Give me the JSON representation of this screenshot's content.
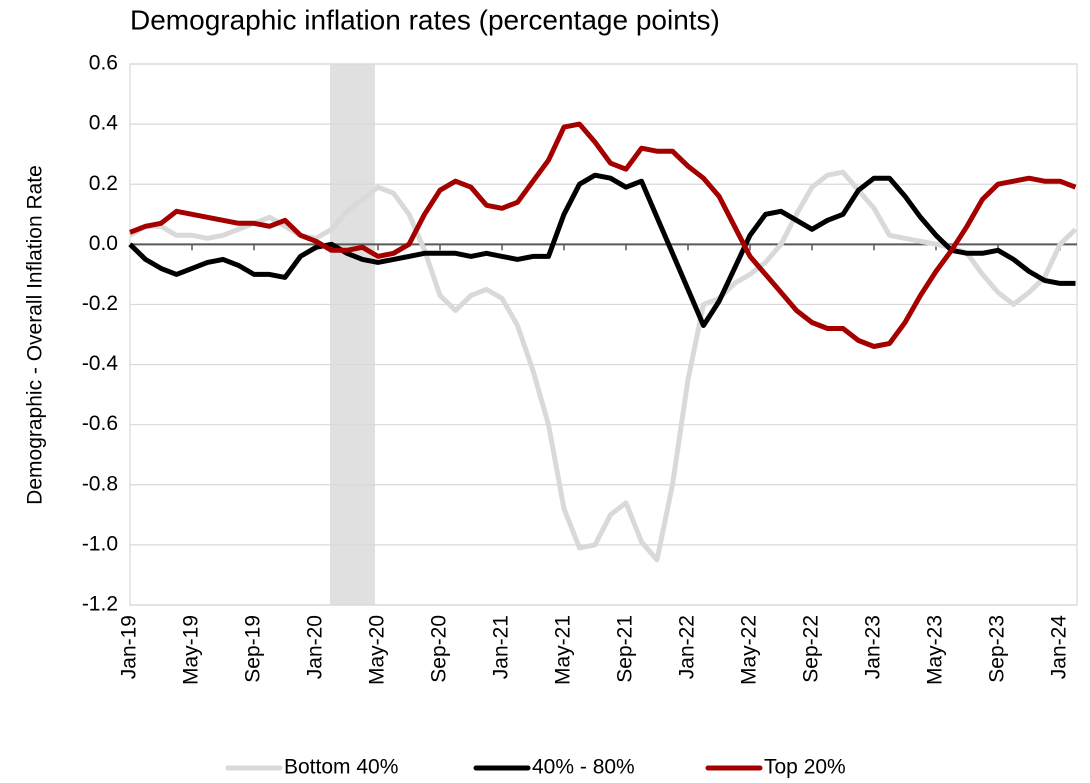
{
  "chart_data": {
    "type": "line",
    "title": "Demographic inflation rates (percentage points)",
    "y_label": "Demographic - Overall Inflation Rate",
    "categories": [
      "Jan-19",
      null,
      null,
      null,
      "May-19",
      null,
      null,
      null,
      "Sep-19",
      null,
      null,
      null,
      "Jan-20",
      null,
      null,
      null,
      "May-20",
      null,
      null,
      null,
      "Sep-20",
      null,
      null,
      null,
      "Jan-21",
      null,
      null,
      null,
      "May-21",
      null,
      null,
      null,
      "Sep-21",
      null,
      null,
      null,
      "Jan-22",
      null,
      null,
      null,
      "May-22",
      null,
      null,
      null,
      "Sep-22",
      null,
      null,
      null,
      "Jan-23",
      null,
      null,
      null,
      "May-23",
      null,
      null,
      null,
      "Sep-23",
      null,
      null,
      null,
      "Jan-24",
      null
    ],
    "series": [
      {
        "name": "Bottom 40%",
        "color": "#d9d9d9",
        "values": [
          0.03,
          0.06,
          0.06,
          0.03,
          0.03,
          0.02,
          0.03,
          0.05,
          0.07,
          0.09,
          0.06,
          0.03,
          0.02,
          0.05,
          0.11,
          0.15,
          0.19,
          0.17,
          0.1,
          -0.02,
          -0.17,
          -0.22,
          -0.17,
          -0.15,
          -0.18,
          -0.27,
          -0.42,
          -0.6,
          -0.88,
          -1.01,
          -1.0,
          -0.9,
          -0.86,
          -0.99,
          -1.05,
          -0.8,
          -0.45,
          -0.2,
          -0.18,
          -0.13,
          -0.1,
          -0.06,
          0.0,
          0.1,
          0.19,
          0.23,
          0.24,
          0.18,
          0.12,
          0.03,
          0.02,
          0.01,
          0.0,
          -0.01,
          -0.03,
          -0.1,
          -0.16,
          -0.2,
          -0.16,
          -0.11,
          0.0,
          0.05
        ]
      },
      {
        "name": "40% - 80%",
        "color": "#000000",
        "values": [
          0.0,
          -0.05,
          -0.08,
          -0.1,
          -0.08,
          -0.06,
          -0.05,
          -0.07,
          -0.1,
          -0.1,
          -0.11,
          -0.04,
          -0.01,
          0.0,
          -0.03,
          -0.05,
          -0.06,
          -0.05,
          -0.04,
          -0.03,
          -0.03,
          -0.03,
          -0.04,
          -0.03,
          -0.04,
          -0.05,
          -0.04,
          -0.04,
          0.1,
          0.2,
          0.23,
          0.22,
          0.19,
          0.21,
          0.09,
          -0.03,
          -0.15,
          -0.27,
          -0.19,
          -0.08,
          0.03,
          0.1,
          0.11,
          0.08,
          0.05,
          0.08,
          0.1,
          0.18,
          0.22,
          0.22,
          0.16,
          0.09,
          0.03,
          -0.02,
          -0.03,
          -0.03,
          -0.02,
          -0.05,
          -0.09,
          -0.12,
          -0.13,
          -0.13
        ]
      },
      {
        "name": "Top 20%",
        "color": "#a50000",
        "values": [
          0.04,
          0.06,
          0.07,
          0.11,
          0.1,
          0.09,
          0.08,
          0.07,
          0.07,
          0.06,
          0.08,
          0.03,
          0.01,
          -0.02,
          -0.02,
          -0.01,
          -0.04,
          -0.03,
          0.0,
          0.1,
          0.18,
          0.21,
          0.19,
          0.13,
          0.12,
          0.14,
          0.21,
          0.28,
          0.39,
          0.4,
          0.34,
          0.27,
          0.25,
          0.32,
          0.31,
          0.31,
          0.26,
          0.22,
          0.16,
          0.06,
          -0.04,
          -0.1,
          -0.16,
          -0.22,
          -0.26,
          -0.28,
          -0.28,
          -0.32,
          -0.34,
          -0.33,
          -0.26,
          -0.17,
          -0.09,
          -0.02,
          0.06,
          0.15,
          0.2,
          0.21,
          0.22,
          0.21,
          0.21,
          0.19
        ]
      }
    ],
    "ylim": [
      -1.2,
      0.6
    ],
    "yticks": [
      0.6,
      0.4,
      0.2,
      {
        "value": 0,
        "label": "0.0"
      },
      -0.2,
      -0.4,
      -0.6,
      -0.8,
      {
        "value": -1,
        "label": "-1.0"
      },
      -1.2
    ],
    "grid": true,
    "legend": "bottom"
  }
}
